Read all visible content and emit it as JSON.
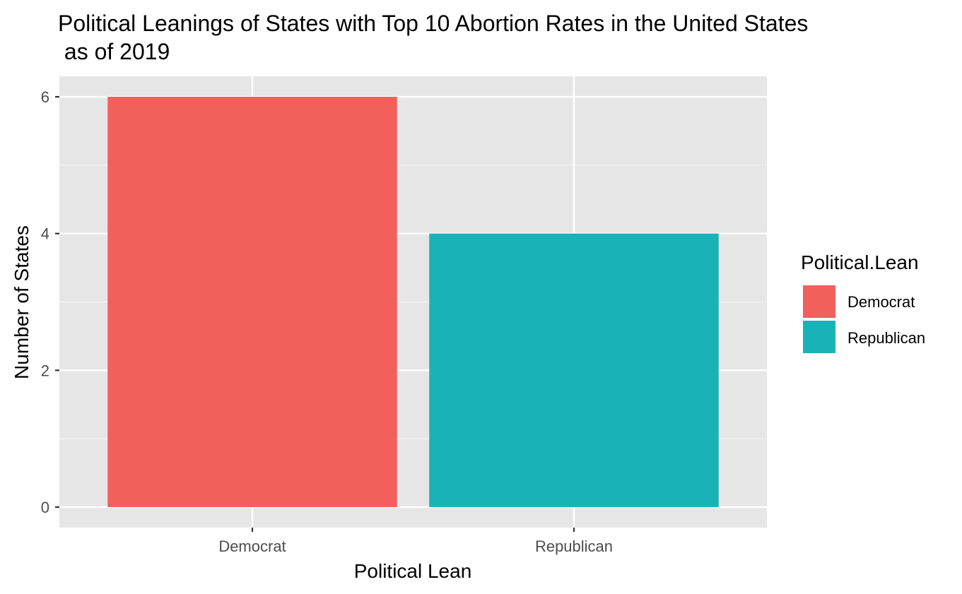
{
  "chart_data": {
    "type": "bar",
    "title_line1": "Political Leanings of States with Top 10 Abortion Rates in the United States",
    "title_line2": " as of 2019",
    "xlabel": "Political Lean",
    "ylabel": "Number of States",
    "categories": [
      "Democrat",
      "Republican"
    ],
    "values": [
      6,
      4
    ],
    "colors": [
      "#F2605C",
      "#19B3B7"
    ],
    "ylim": [
      -0.3,
      6.3
    ],
    "yticks": [
      0,
      2,
      4,
      6
    ],
    "ytick_labels": [
      "0",
      "2",
      "4",
      "6"
    ],
    "grid": true,
    "legend": {
      "title": "Political.Lean",
      "position": "right",
      "entries": [
        "Democrat",
        "Republican"
      ]
    }
  }
}
